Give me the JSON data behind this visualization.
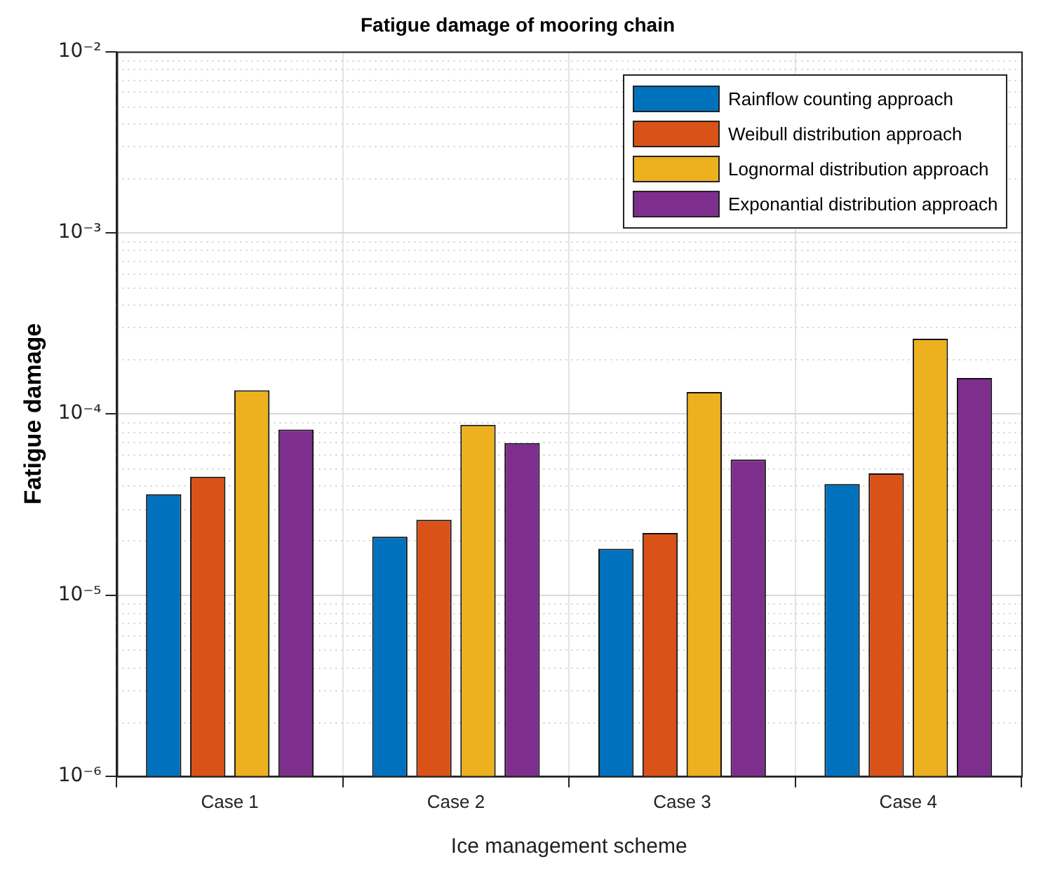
{
  "chart_data": {
    "type": "bar",
    "title": "Fatigue damage of mooring chain",
    "xlabel": "Ice management scheme",
    "ylabel": "Fatigue damage",
    "categories": [
      "Case 1",
      "Case 2",
      "Case 3",
      "Case 4"
    ],
    "series": [
      {
        "name": "Rainflow counting approach",
        "color": "#0072bd",
        "values": [
          3.6e-05,
          2.1e-05,
          1.8e-05,
          4.1e-05
        ]
      },
      {
        "name": "Weibull distribution approach",
        "color": "#d95319",
        "values": [
          4.5e-05,
          2.6e-05,
          2.2e-05,
          4.7e-05
        ]
      },
      {
        "name": "Lognormal distribution approach",
        "color": "#edb120",
        "values": [
          0.000135,
          8.7e-05,
          0.000132,
          0.00026
        ]
      },
      {
        "name": "Exponantial distribution approach",
        "color": "#7e2f8e",
        "values": [
          8.2e-05,
          6.9e-05,
          5.6e-05,
          0.000158
        ]
      }
    ],
    "log": "y",
    "ylim": [
      1e-06,
      0.01
    ],
    "yticks": [
      {
        "value": 1e-06,
        "label": "10⁻⁶"
      },
      {
        "value": 1e-05,
        "label": "10⁻⁵"
      },
      {
        "value": 0.0001,
        "label": "10⁻⁴"
      },
      {
        "value": 0.001,
        "label": "10⁻³"
      },
      {
        "value": 0.01,
        "label": "10⁻²"
      }
    ],
    "grid": true,
    "legend": "top right"
  }
}
